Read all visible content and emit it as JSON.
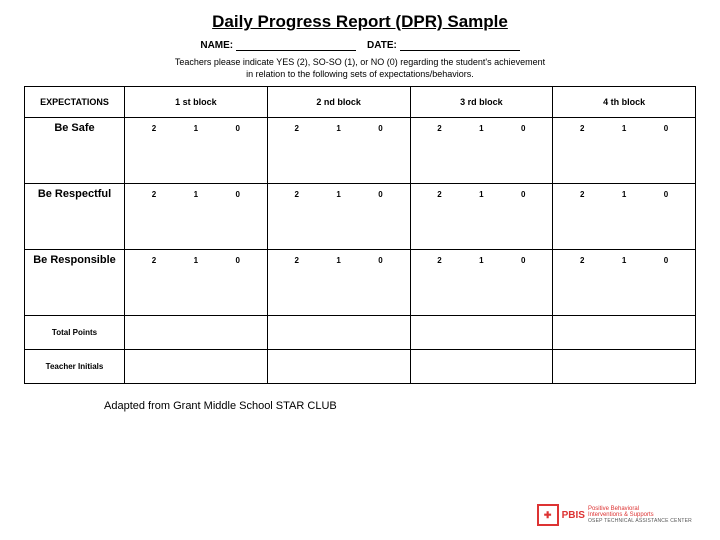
{
  "title": "Daily Progress Report (DPR) Sample",
  "form": {
    "name_label": "NAME:",
    "date_label": "DATE:"
  },
  "instructions": {
    "line1": "Teachers please indicate YES (2), SO-SO (1), or NO (0) regarding the student's achievement",
    "line2": "in relation to the following sets of expectations/behaviors."
  },
  "table": {
    "exp_header": "EXPECTATIONS",
    "blocks": [
      "1 st block",
      "2 nd block",
      "3 rd block",
      "4 th block"
    ],
    "ratings": [
      "2",
      "1",
      "0"
    ],
    "rows": [
      "Be Safe",
      "Be Respectful",
      "Be Responsible"
    ],
    "total_label": "Total Points",
    "initials_label": "Teacher Initials"
  },
  "footer": "Adapted from Grant Middle School STAR CLUB",
  "logo": {
    "mark": "✚",
    "brand": "PBIS",
    "tag1": "Positive Behavioral",
    "tag2": "Interventions & Supports",
    "tag3": "OSEP TECHNICAL ASSISTANCE CENTER"
  },
  "style": {
    "border_color": "#000000",
    "accent_color": "#d33",
    "title_fontsize": 17,
    "cell_fontsize": 9
  }
}
